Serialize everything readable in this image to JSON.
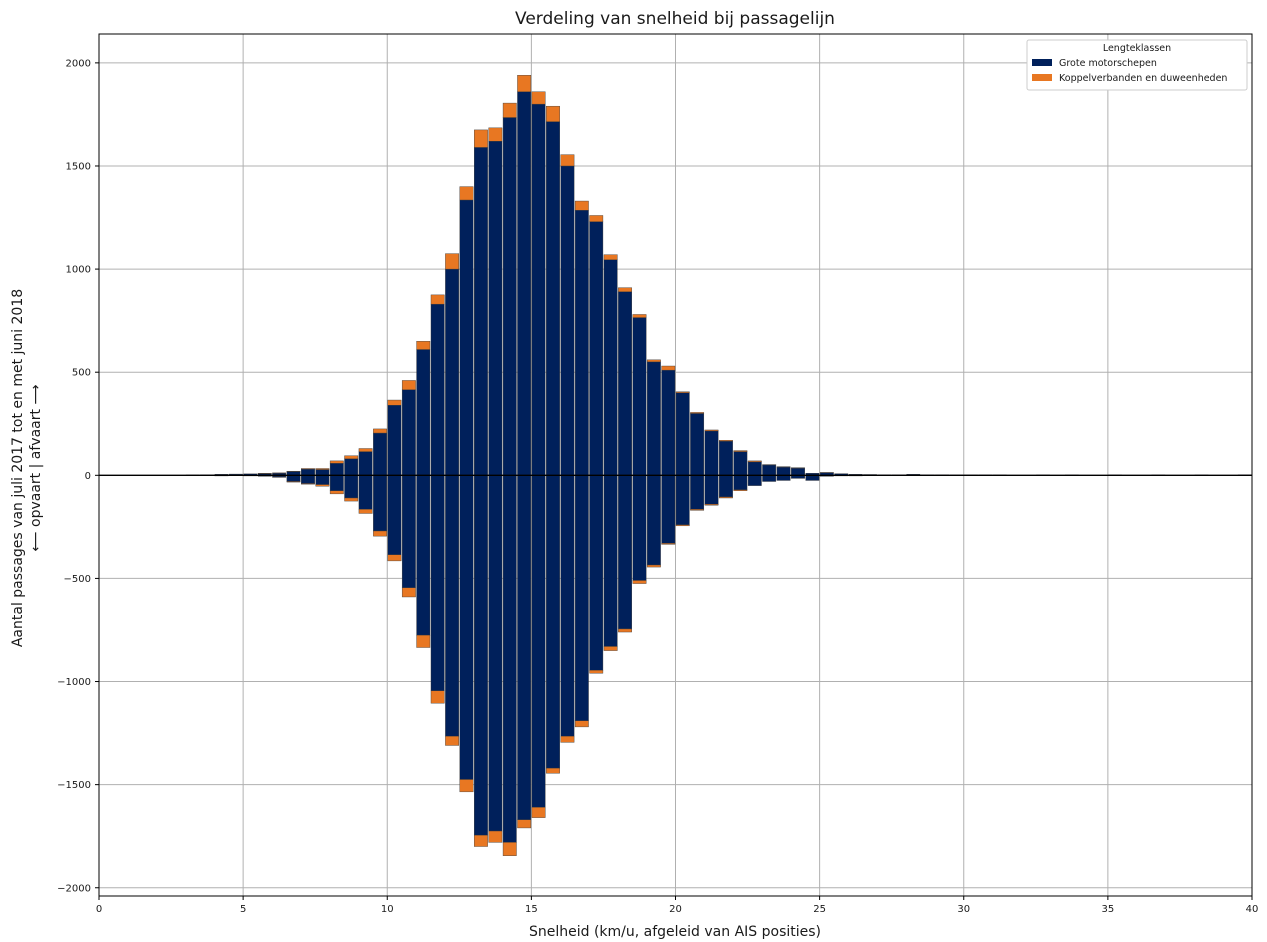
{
  "chart_data": {
    "type": "bar",
    "title": "Verdeling van snelheid bij passagelijn",
    "xlabel": "Snelheid (km/u, afgeleid van AIS posities)",
    "ylabel_line1": "Aantal passages van juli 2017 tot en met juni 2018",
    "ylabel_line2": "⟵ opvaart | afvaart ⟶",
    "xlim": [
      0,
      40
    ],
    "ylim": [
      -2040,
      2140
    ],
    "xticks": [
      0,
      5,
      10,
      15,
      20,
      25,
      30,
      35,
      40
    ],
    "yticks": [
      -2000,
      -1500,
      -1000,
      -500,
      0,
      500,
      1000,
      1500,
      2000
    ],
    "grid": true,
    "bin_width": 0.5,
    "legend": {
      "title": "Lengteklassen",
      "position": "top-right"
    },
    "series": [
      {
        "name": "Grote motorschepen",
        "color": "#00205b"
      },
      {
        "name": "Koppelverbanden en duweenheden",
        "color": "#e87722"
      }
    ],
    "bins": [
      {
        "x": 3.0,
        "up_motor": 2,
        "up_koppel": 0,
        "down_motor": 0,
        "down_koppel": 0
      },
      {
        "x": 3.5,
        "up_motor": 3,
        "up_koppel": 0,
        "down_motor": -2,
        "down_koppel": 0
      },
      {
        "x": 4.0,
        "up_motor": 5,
        "up_koppel": 0,
        "down_motor": -3,
        "down_koppel": 0
      },
      {
        "x": 4.5,
        "up_motor": 6,
        "up_koppel": 0,
        "down_motor": -2,
        "down_koppel": 0
      },
      {
        "x": 5.0,
        "up_motor": 7,
        "up_koppel": 0,
        "down_motor": -3,
        "down_koppel": 0
      },
      {
        "x": 5.5,
        "up_motor": 8,
        "up_koppel": 2,
        "down_motor": -5,
        "down_koppel": 0
      },
      {
        "x": 6.0,
        "up_motor": 10,
        "up_koppel": 2,
        "down_motor": -8,
        "down_koppel": -2
      },
      {
        "x": 6.5,
        "up_motor": 18,
        "up_koppel": 2,
        "down_motor": -30,
        "down_koppel": -3
      },
      {
        "x": 7.0,
        "up_motor": 30,
        "up_koppel": 3,
        "down_motor": -40,
        "down_koppel": -3
      },
      {
        "x": 7.5,
        "up_motor": 28,
        "up_koppel": 5,
        "down_motor": -45,
        "down_koppel": -8
      },
      {
        "x": 8.0,
        "up_motor": 58,
        "up_koppel": 12,
        "down_motor": -75,
        "down_koppel": -15
      },
      {
        "x": 8.5,
        "up_motor": 80,
        "up_koppel": 15,
        "down_motor": -110,
        "down_koppel": -15
      },
      {
        "x": 9.0,
        "up_motor": 115,
        "up_koppel": 15,
        "down_motor": -165,
        "down_koppel": -20
      },
      {
        "x": 9.5,
        "up_motor": 205,
        "up_koppel": 20,
        "down_motor": -270,
        "down_koppel": -25
      },
      {
        "x": 10.0,
        "up_motor": 340,
        "up_koppel": 25,
        "down_motor": -385,
        "down_koppel": -30
      },
      {
        "x": 10.5,
        "up_motor": 415,
        "up_koppel": 45,
        "down_motor": -545,
        "down_koppel": -45
      },
      {
        "x": 11.0,
        "up_motor": 610,
        "up_koppel": 40,
        "down_motor": -775,
        "down_koppel": -60
      },
      {
        "x": 11.5,
        "up_motor": 830,
        "up_koppel": 45,
        "down_motor": -1045,
        "down_koppel": -60
      },
      {
        "x": 12.0,
        "up_motor": 1000,
        "up_koppel": 75,
        "down_motor": -1265,
        "down_koppel": -45
      },
      {
        "x": 12.5,
        "up_motor": 1335,
        "up_koppel": 65,
        "down_motor": -1475,
        "down_koppel": -60
      },
      {
        "x": 13.0,
        "up_motor": 1590,
        "up_koppel": 85,
        "down_motor": -1745,
        "down_koppel": -55
      },
      {
        "x": 13.5,
        "up_motor": 1620,
        "up_koppel": 65,
        "down_motor": -1725,
        "down_koppel": -55
      },
      {
        "x": 14.0,
        "up_motor": 1735,
        "up_koppel": 70,
        "down_motor": -1780,
        "down_koppel": -65
      },
      {
        "x": 14.5,
        "up_motor": 1860,
        "up_koppel": 80,
        "down_motor": -1670,
        "down_koppel": -40
      },
      {
        "x": 15.0,
        "up_motor": 1800,
        "up_koppel": 60,
        "down_motor": -1610,
        "down_koppel": -50
      },
      {
        "x": 15.5,
        "up_motor": 1715,
        "up_koppel": 75,
        "down_motor": -1420,
        "down_koppel": -25
      },
      {
        "x": 16.0,
        "up_motor": 1500,
        "up_koppel": 55,
        "down_motor": -1265,
        "down_koppel": -30
      },
      {
        "x": 16.5,
        "up_motor": 1285,
        "up_koppel": 45,
        "down_motor": -1190,
        "down_koppel": -30
      },
      {
        "x": 17.0,
        "up_motor": 1230,
        "up_koppel": 30,
        "down_motor": -945,
        "down_koppel": -15
      },
      {
        "x": 17.5,
        "up_motor": 1045,
        "up_koppel": 25,
        "down_motor": -830,
        "down_koppel": -20
      },
      {
        "x": 18.0,
        "up_motor": 890,
        "up_koppel": 20,
        "down_motor": -745,
        "down_koppel": -15
      },
      {
        "x": 18.5,
        "up_motor": 765,
        "up_koppel": 15,
        "down_motor": -510,
        "down_koppel": -15
      },
      {
        "x": 19.0,
        "up_motor": 550,
        "up_koppel": 10,
        "down_motor": -435,
        "down_koppel": -10
      },
      {
        "x": 19.5,
        "up_motor": 510,
        "up_koppel": 20,
        "down_motor": -330,
        "down_koppel": -5
      },
      {
        "x": 20.0,
        "up_motor": 400,
        "up_koppel": 5,
        "down_motor": -240,
        "down_koppel": -5
      },
      {
        "x": 20.5,
        "up_motor": 300,
        "up_koppel": 5,
        "down_motor": -165,
        "down_koppel": -5
      },
      {
        "x": 21.0,
        "up_motor": 215,
        "up_koppel": 5,
        "down_motor": -140,
        "down_koppel": -5
      },
      {
        "x": 21.5,
        "up_motor": 165,
        "up_koppel": 5,
        "down_motor": -105,
        "down_koppel": -5
      },
      {
        "x": 22.0,
        "up_motor": 115,
        "up_koppel": 5,
        "down_motor": -70,
        "down_koppel": -5
      },
      {
        "x": 22.5,
        "up_motor": 65,
        "up_koppel": 5,
        "down_motor": -50,
        "down_koppel": 0
      },
      {
        "x": 23.0,
        "up_motor": 50,
        "up_koppel": 2,
        "down_motor": -30,
        "down_koppel": 0
      },
      {
        "x": 23.5,
        "up_motor": 40,
        "up_koppel": 2,
        "down_motor": -25,
        "down_koppel": 0
      },
      {
        "x": 24.0,
        "up_motor": 35,
        "up_koppel": 2,
        "down_motor": -15,
        "down_koppel": 0
      },
      {
        "x": 24.5,
        "up_motor": 10,
        "up_koppel": 0,
        "down_motor": -25,
        "down_koppel": 0
      },
      {
        "x": 25.0,
        "up_motor": 12,
        "up_koppel": 2,
        "down_motor": -5,
        "down_koppel": 0
      },
      {
        "x": 25.5,
        "up_motor": 8,
        "up_koppel": 0,
        "down_motor": -3,
        "down_koppel": 0
      },
      {
        "x": 26.0,
        "up_motor": 5,
        "up_koppel": 0,
        "down_motor": -3,
        "down_koppel": 0
      },
      {
        "x": 26.5,
        "up_motor": 4,
        "up_koppel": 0,
        "down_motor": -2,
        "down_koppel": 0
      },
      {
        "x": 27.0,
        "up_motor": 3,
        "up_koppel": 0,
        "down_motor": -2,
        "down_koppel": 0
      },
      {
        "x": 27.5,
        "up_motor": 3,
        "up_koppel": 0,
        "down_motor": -2,
        "down_koppel": 0
      },
      {
        "x": 28.0,
        "up_motor": 5,
        "up_koppel": 0,
        "down_motor": -2,
        "down_koppel": 0
      },
      {
        "x": 28.5,
        "up_motor": 3,
        "up_koppel": 0,
        "down_motor": -2,
        "down_koppel": 0
      },
      {
        "x": 29.0,
        "up_motor": 3,
        "up_koppel": 0,
        "down_motor": -2,
        "down_koppel": 0
      },
      {
        "x": 29.5,
        "up_motor": 2,
        "up_koppel": 0,
        "down_motor": -2,
        "down_koppel": 0
      },
      {
        "x": 30.0,
        "up_motor": 2,
        "up_koppel": 0,
        "down_motor": -2,
        "down_koppel": 0
      },
      {
        "x": 30.5,
        "up_motor": 2,
        "up_koppel": 0,
        "down_motor": -1,
        "down_koppel": 0
      },
      {
        "x": 31.0,
        "up_motor": 2,
        "up_koppel": 0,
        "down_motor": -1,
        "down_koppel": 0
      },
      {
        "x": 32.5,
        "up_motor": 2,
        "up_koppel": 0,
        "down_motor": -1,
        "down_koppel": 0
      },
      {
        "x": 33.5,
        "up_motor": 2,
        "up_koppel": 0,
        "down_motor": -1,
        "down_koppel": 0
      },
      {
        "x": 35.0,
        "up_motor": 2,
        "up_koppel": 0,
        "down_motor": -1,
        "down_koppel": 0
      },
      {
        "x": 36.5,
        "up_motor": 2,
        "up_koppel": 0,
        "down_motor": -1,
        "down_koppel": 0
      },
      {
        "x": 38.0,
        "up_motor": 2,
        "up_koppel": 0,
        "down_motor": -1,
        "down_koppel": 0
      },
      {
        "x": 39.5,
        "up_motor": 3,
        "up_koppel": 0,
        "down_motor": -1,
        "down_koppel": 0
      }
    ]
  }
}
